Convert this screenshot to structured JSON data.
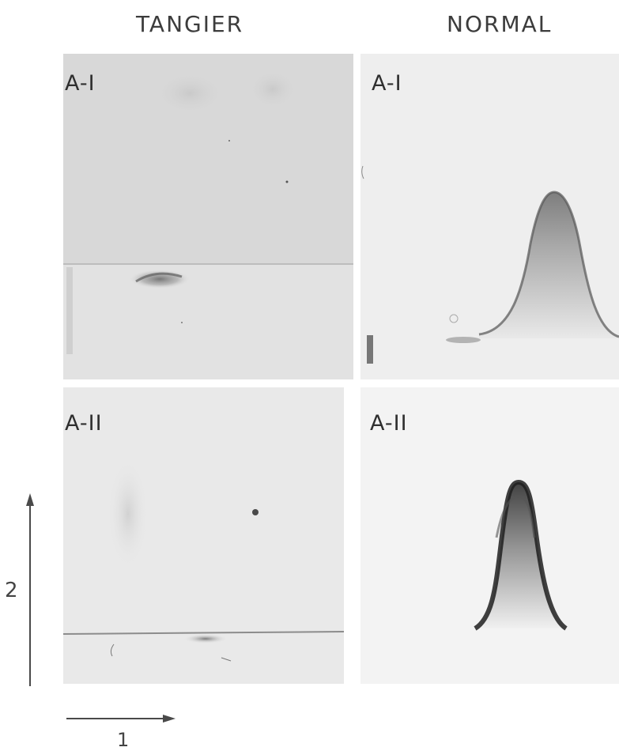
{
  "figure": {
    "column_titles": [
      "TANGIER",
      "NORMAL"
    ],
    "panels": [
      {
        "column": "TANGIER",
        "label": "A-I"
      },
      {
        "column": "NORMAL",
        "label": "A-I"
      },
      {
        "column": "TANGIER",
        "label": "A-II"
      },
      {
        "column": "NORMAL",
        "label": "A-II"
      }
    ],
    "axes": {
      "vertical_label": "2",
      "horizontal_label": "1"
    }
  }
}
